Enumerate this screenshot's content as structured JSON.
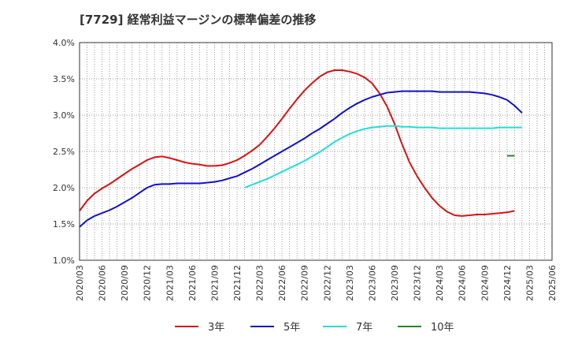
{
  "chart_data": {
    "type": "line",
    "title": "[7729]  経常利益マージンの標準偏差の推移",
    "xlabel": "",
    "ylabel": "",
    "ylim": [
      1.0,
      4.0
    ],
    "yticks": [
      "1.0%",
      "1.5%",
      "2.0%",
      "2.5%",
      "3.0%",
      "3.5%",
      "4.0%"
    ],
    "xticks": [
      "2020/03",
      "2020/06",
      "2020/09",
      "2020/12",
      "2021/03",
      "2021/06",
      "2021/09",
      "2021/12",
      "2022/03",
      "2022/06",
      "2022/09",
      "2022/12",
      "2023/03",
      "2023/06",
      "2023/09",
      "2023/12",
      "2024/03",
      "2024/06",
      "2024/09",
      "2024/12",
      "2025/03",
      "2025/06"
    ],
    "grid": true,
    "legend_position": "bottom",
    "series": [
      {
        "name": "3年",
        "color": "#dd1111",
        "points": [
          [
            "2020/03",
            1.68
          ],
          [
            "2020/04",
            1.82
          ],
          [
            "2020/05",
            1.92
          ],
          [
            "2020/06",
            1.99
          ],
          [
            "2020/07",
            2.05
          ],
          [
            "2020/08",
            2.12
          ],
          [
            "2020/09",
            2.19
          ],
          [
            "2020/10",
            2.26
          ],
          [
            "2020/11",
            2.32
          ],
          [
            "2020/12",
            2.38
          ],
          [
            "2021/01",
            2.42
          ],
          [
            "2021/02",
            2.43
          ],
          [
            "2021/03",
            2.41
          ],
          [
            "2021/04",
            2.38
          ],
          [
            "2021/05",
            2.35
          ],
          [
            "2021/06",
            2.33
          ],
          [
            "2021/07",
            2.32
          ],
          [
            "2021/08",
            2.3
          ],
          [
            "2021/09",
            2.3
          ],
          [
            "2021/10",
            2.31
          ],
          [
            "2021/11",
            2.34
          ],
          [
            "2021/12",
            2.38
          ],
          [
            "2022/01",
            2.44
          ],
          [
            "2022/02",
            2.51
          ],
          [
            "2022/03",
            2.59
          ],
          [
            "2022/04",
            2.7
          ],
          [
            "2022/05",
            2.82
          ],
          [
            "2022/06",
            2.95
          ],
          [
            "2022/07",
            3.09
          ],
          [
            "2022/08",
            3.22
          ],
          [
            "2022/09",
            3.34
          ],
          [
            "2022/10",
            3.44
          ],
          [
            "2022/11",
            3.53
          ],
          [
            "2022/12",
            3.59
          ],
          [
            "2023/01",
            3.62
          ],
          [
            "2023/02",
            3.62
          ],
          [
            "2023/03",
            3.6
          ],
          [
            "2023/04",
            3.57
          ],
          [
            "2023/05",
            3.52
          ],
          [
            "2023/06",
            3.44
          ],
          [
            "2023/07",
            3.3
          ],
          [
            "2023/08",
            3.12
          ],
          [
            "2023/09",
            2.88
          ],
          [
            "2023/10",
            2.6
          ],
          [
            "2023/11",
            2.35
          ],
          [
            "2023/12",
            2.16
          ],
          [
            "2024/01",
            2.0
          ],
          [
            "2024/02",
            1.86
          ],
          [
            "2024/03",
            1.75
          ],
          [
            "2024/04",
            1.67
          ],
          [
            "2024/05",
            1.62
          ],
          [
            "2024/06",
            1.61
          ],
          [
            "2024/07",
            1.62
          ],
          [
            "2024/08",
            1.63
          ],
          [
            "2024/09",
            1.63
          ],
          [
            "2024/10",
            1.64
          ],
          [
            "2024/11",
            1.65
          ],
          [
            "2024/12",
            1.66
          ],
          [
            "2025/01",
            1.68
          ]
        ]
      },
      {
        "name": "5年",
        "color": "#1111cc",
        "points": [
          [
            "2020/03",
            1.46
          ],
          [
            "2020/04",
            1.55
          ],
          [
            "2020/05",
            1.61
          ],
          [
            "2020/06",
            1.65
          ],
          [
            "2020/07",
            1.69
          ],
          [
            "2020/08",
            1.74
          ],
          [
            "2020/09",
            1.8
          ],
          [
            "2020/10",
            1.86
          ],
          [
            "2020/11",
            1.93
          ],
          [
            "2020/12",
            2.0
          ],
          [
            "2021/01",
            2.04
          ],
          [
            "2021/02",
            2.05
          ],
          [
            "2021/03",
            2.05
          ],
          [
            "2021/04",
            2.06
          ],
          [
            "2021/05",
            2.06
          ],
          [
            "2021/06",
            2.06
          ],
          [
            "2021/07",
            2.06
          ],
          [
            "2021/08",
            2.07
          ],
          [
            "2021/09",
            2.08
          ],
          [
            "2021/10",
            2.1
          ],
          [
            "2021/11",
            2.13
          ],
          [
            "2021/12",
            2.16
          ],
          [
            "2022/01",
            2.21
          ],
          [
            "2022/02",
            2.26
          ],
          [
            "2022/03",
            2.32
          ],
          [
            "2022/04",
            2.38
          ],
          [
            "2022/05",
            2.44
          ],
          [
            "2022/06",
            2.5
          ],
          [
            "2022/07",
            2.56
          ],
          [
            "2022/08",
            2.62
          ],
          [
            "2022/09",
            2.68
          ],
          [
            "2022/10",
            2.75
          ],
          [
            "2022/11",
            2.81
          ],
          [
            "2022/12",
            2.88
          ],
          [
            "2023/01",
            2.95
          ],
          [
            "2023/02",
            3.03
          ],
          [
            "2023/03",
            3.1
          ],
          [
            "2023/04",
            3.16
          ],
          [
            "2023/05",
            3.21
          ],
          [
            "2023/06",
            3.25
          ],
          [
            "2023/07",
            3.28
          ],
          [
            "2023/08",
            3.31
          ],
          [
            "2023/09",
            3.32
          ],
          [
            "2023/10",
            3.33
          ],
          [
            "2023/11",
            3.33
          ],
          [
            "2023/12",
            3.33
          ],
          [
            "2024/01",
            3.33
          ],
          [
            "2024/02",
            3.33
          ],
          [
            "2024/03",
            3.32
          ],
          [
            "2024/04",
            3.32
          ],
          [
            "2024/05",
            3.32
          ],
          [
            "2024/06",
            3.32
          ],
          [
            "2024/07",
            3.32
          ],
          [
            "2024/08",
            3.31
          ],
          [
            "2024/09",
            3.3
          ],
          [
            "2024/10",
            3.28
          ],
          [
            "2024/11",
            3.25
          ],
          [
            "2024/12",
            3.21
          ],
          [
            "2025/01",
            3.13
          ],
          [
            "2025/02",
            3.03
          ]
        ]
      },
      {
        "name": "7年",
        "color": "#22dddd",
        "points": [
          [
            "2022/01",
            2.0
          ],
          [
            "2022/02",
            2.04
          ],
          [
            "2022/03",
            2.08
          ],
          [
            "2022/04",
            2.12
          ],
          [
            "2022/05",
            2.17
          ],
          [
            "2022/06",
            2.22
          ],
          [
            "2022/07",
            2.27
          ],
          [
            "2022/08",
            2.32
          ],
          [
            "2022/09",
            2.37
          ],
          [
            "2022/10",
            2.43
          ],
          [
            "2022/11",
            2.49
          ],
          [
            "2022/12",
            2.56
          ],
          [
            "2023/01",
            2.63
          ],
          [
            "2023/02",
            2.69
          ],
          [
            "2023/03",
            2.74
          ],
          [
            "2023/04",
            2.78
          ],
          [
            "2023/05",
            2.81
          ],
          [
            "2023/06",
            2.83
          ],
          [
            "2023/07",
            2.84
          ],
          [
            "2023/08",
            2.85
          ],
          [
            "2023/09",
            2.85
          ],
          [
            "2023/10",
            2.84
          ],
          [
            "2023/11",
            2.84
          ],
          [
            "2023/12",
            2.83
          ],
          [
            "2024/01",
            2.83
          ],
          [
            "2024/02",
            2.83
          ],
          [
            "2024/03",
            2.82
          ],
          [
            "2024/04",
            2.82
          ],
          [
            "2024/05",
            2.82
          ],
          [
            "2024/06",
            2.82
          ],
          [
            "2024/07",
            2.82
          ],
          [
            "2024/08",
            2.82
          ],
          [
            "2024/09",
            2.82
          ],
          [
            "2024/10",
            2.82
          ],
          [
            "2024/11",
            2.83
          ],
          [
            "2024/12",
            2.83
          ],
          [
            "2025/01",
            2.83
          ],
          [
            "2025/02",
            2.83
          ]
        ]
      },
      {
        "name": "10年",
        "color": "#228822",
        "points": [
          [
            "2024/12",
            2.44
          ],
          [
            "2025/01",
            2.44
          ]
        ]
      }
    ]
  }
}
